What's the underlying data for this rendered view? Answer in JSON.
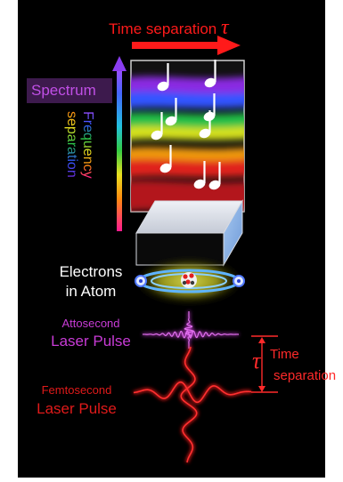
{
  "time_header": {
    "label": "Time separation",
    "symbol": "τ"
  },
  "spectrum": {
    "label": "Spectrum",
    "label_bg": "#3d1a4d",
    "label_color": "#c04fe6",
    "freq_line1": "Frequency",
    "freq_line2": "separation",
    "band_colors": [
      "#8a2be2",
      "#3355ff",
      "#22c04a",
      "#d7e21a",
      "#f09a10",
      "#e0201a",
      "#b3121a"
    ]
  },
  "atom": {
    "line1": "Electrons",
    "line2": "in Atom"
  },
  "atto": {
    "line1": "Attosecond",
    "line2": "Laser Pulse",
    "color": "#c83bd6"
  },
  "femto": {
    "line1": "Femtosecond",
    "line2": "Laser Pulse",
    "color": "#e01a1a"
  },
  "time_sep": {
    "symbol": "τ",
    "line1": "Time",
    "line2": "separation"
  },
  "colors": {
    "background": "#000000",
    "accent_red": "#ff1a1a",
    "note": "#ffffff"
  },
  "icons": [
    "music-note-icon",
    "prism-icon",
    "electron-icon",
    "nucleus-icon"
  ]
}
